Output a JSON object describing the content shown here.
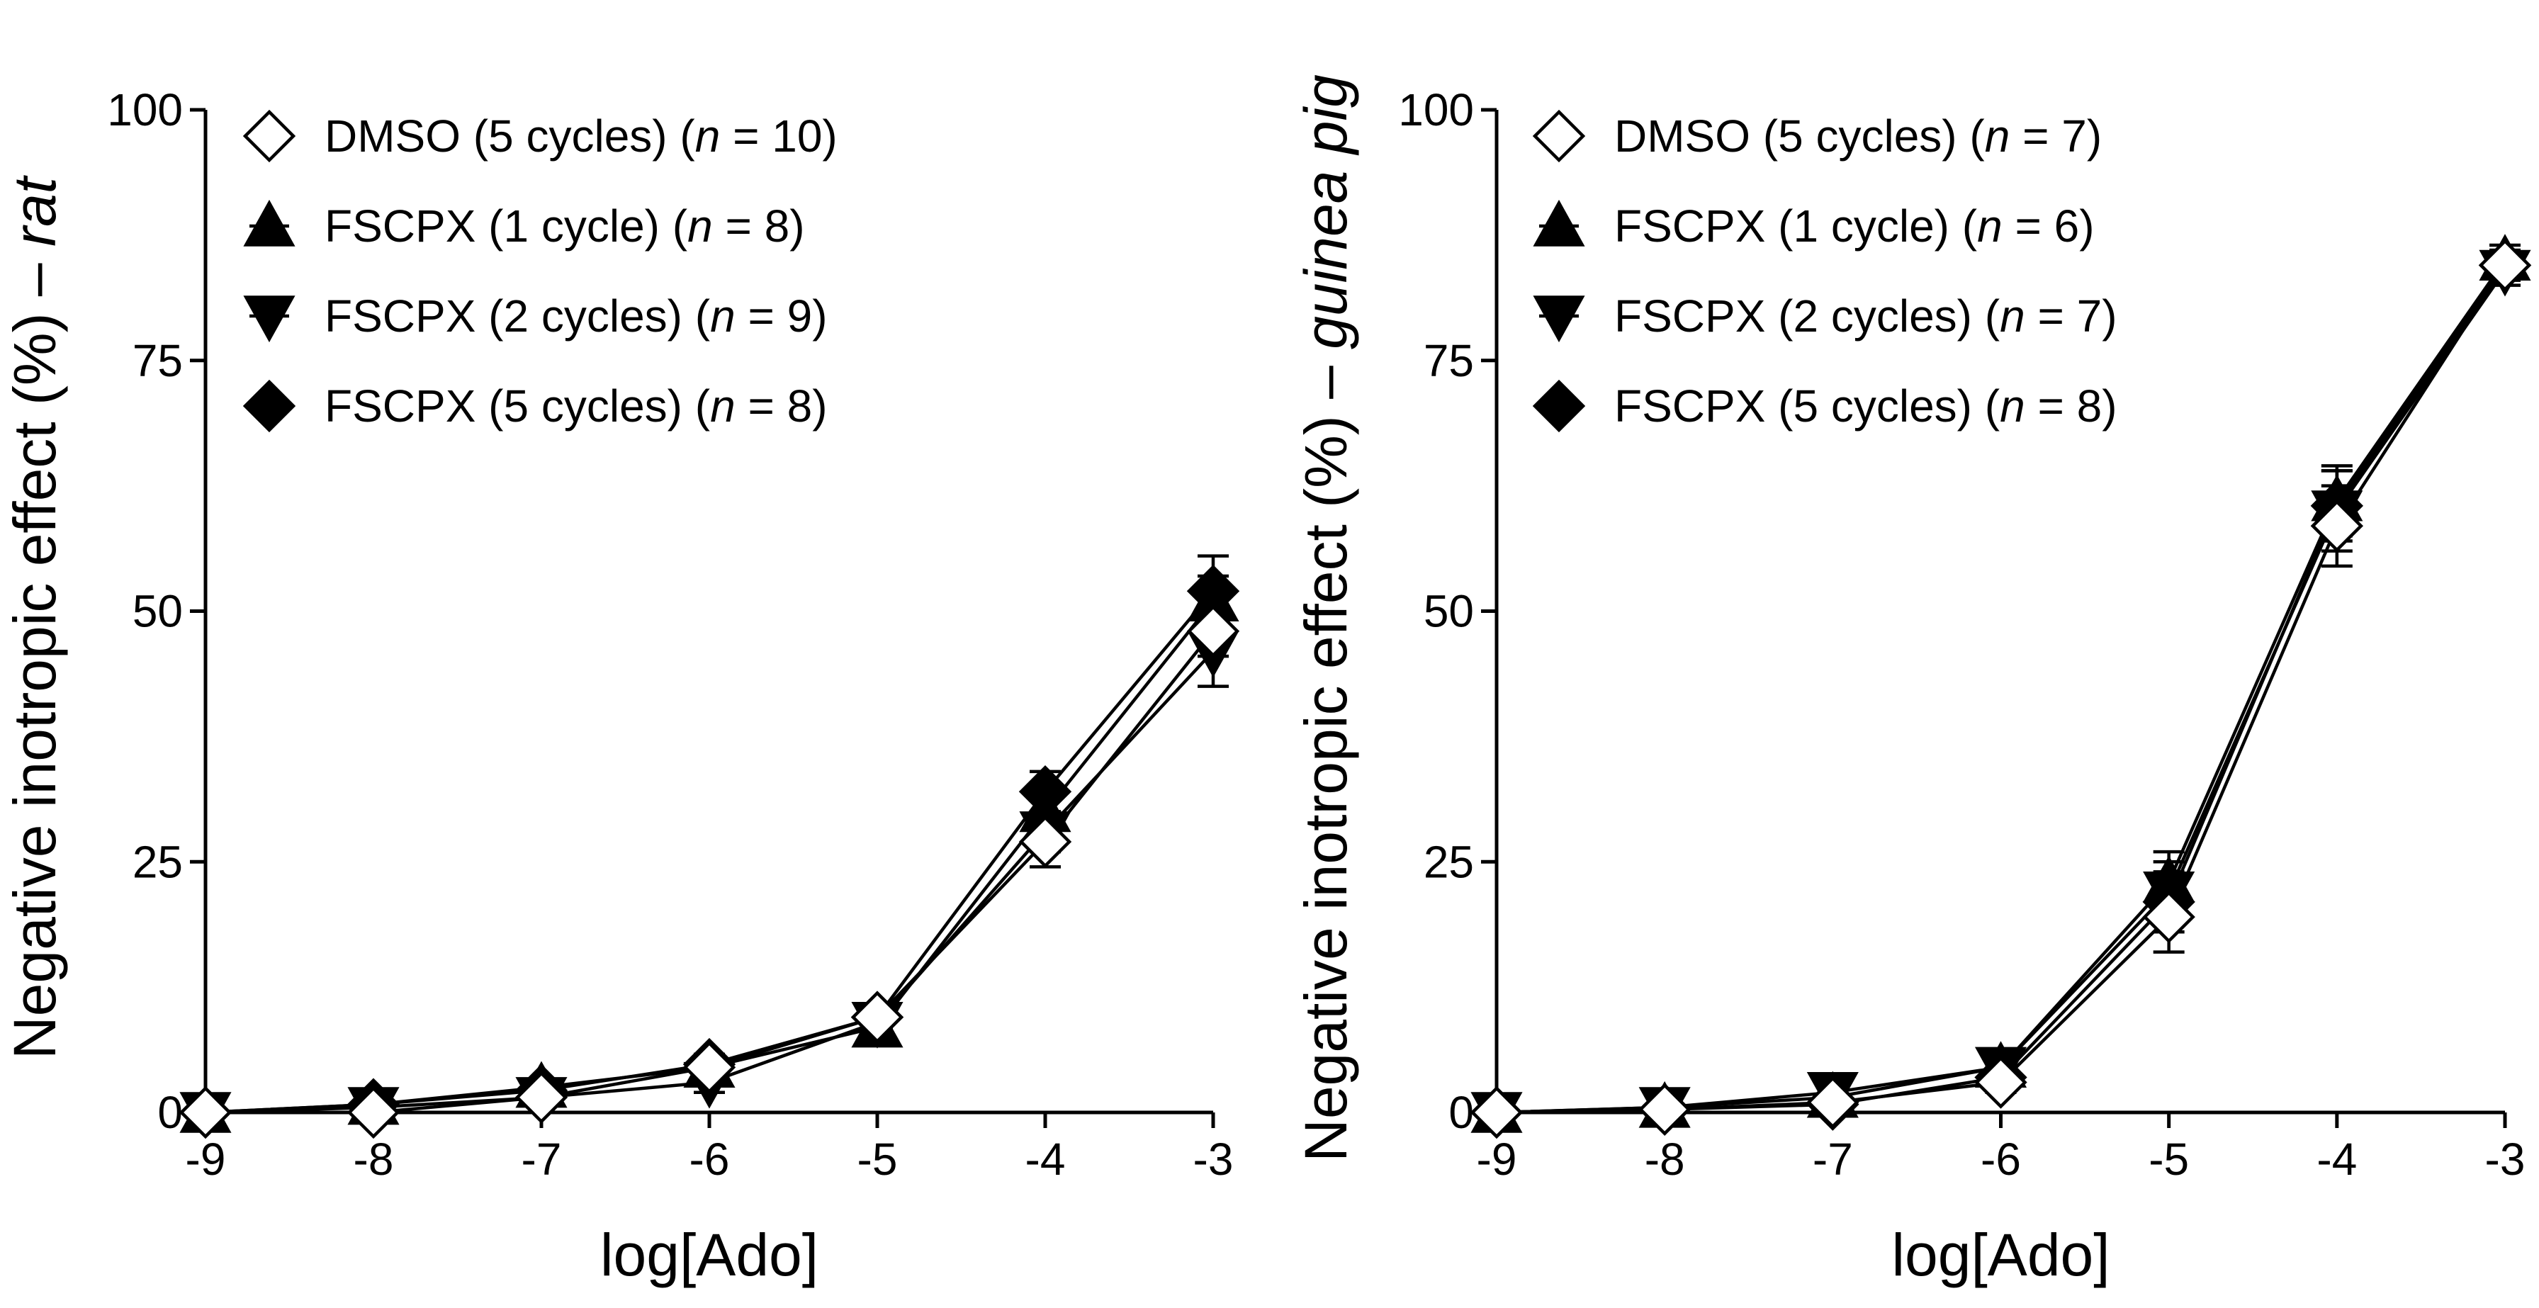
{
  "chart_data": [
    {
      "type": "line",
      "panel": "left",
      "title": "",
      "xlabel": "log[Ado]",
      "ylabel": "Negative inotropic effect (%)",
      "ylabel_suffix": "rat",
      "xlim": [
        -9,
        -3
      ],
      "ylim": [
        0,
        100
      ],
      "xticks": [
        "-9",
        "-8",
        "-7",
        "-6",
        "-5",
        "-4",
        "-3"
      ],
      "yticks": [
        "0",
        "25",
        "50",
        "75",
        "100"
      ],
      "legend_position": "top-left",
      "x": [
        -9,
        -8,
        -7,
        -6,
        -5,
        -4,
        -3
      ],
      "series": [
        {
          "name": "DMSO (5 cycles)",
          "n_label": "n",
          "n_value": "= 10)",
          "marker": "diamond-open",
          "values": [
            0,
            0,
            1.5,
            4.5,
            9.5,
            27,
            48
          ],
          "errors": [
            0.5,
            0.5,
            0.8,
            1.0,
            1.2,
            2.5,
            2.5
          ]
        },
        {
          "name": "FSCPX (1 cycle)",
          "n_label": "n",
          "n_value": "= 8)",
          "marker": "triangle-up",
          "values": [
            0,
            0.8,
            2.5,
            4.5,
            8.5,
            30,
            51
          ],
          "errors": [
            0.5,
            0.5,
            0.8,
            1.0,
            1.2,
            2.5,
            2.5
          ]
        },
        {
          "name": "FSCPX (2 cycles)",
          "n_label": "n",
          "n_value": "= 9)",
          "marker": "triangle-down",
          "values": [
            0,
            0.5,
            1.5,
            3,
            9,
            28,
            46
          ],
          "errors": [
            0.5,
            0.5,
            0.8,
            1.0,
            1.2,
            2.0,
            3.5
          ]
        },
        {
          "name": "FSCPX (5 cycles)",
          "n_label": "n",
          "n_value": "= 8)",
          "marker": "diamond-filled",
          "values": [
            0,
            0.8,
            2.2,
            4.8,
            9.5,
            32,
            52
          ],
          "errors": [
            0.5,
            0.5,
            0.8,
            1.0,
            1.2,
            2.0,
            3.5
          ]
        }
      ]
    },
    {
      "type": "line",
      "panel": "right",
      "title": "",
      "xlabel": "log[Ado]",
      "ylabel": "Negative inotropic effect (%)",
      "ylabel_suffix": "guinea pig",
      "xlim": [
        -9,
        -3
      ],
      "ylim": [
        0,
        100
      ],
      "xticks": [
        "-9",
        "-8",
        "-7",
        "-6",
        "-5",
        "-4",
        "-3"
      ],
      "yticks": [
        "0",
        "25",
        "50",
        "75",
        "100"
      ],
      "legend_position": "top-left",
      "x": [
        -9,
        -8,
        -7,
        -6,
        -5,
        -4,
        -3
      ],
      "series": [
        {
          "name": "DMSO (5 cycles)",
          "n_label": "n",
          "n_value": "= 7)",
          "marker": "diamond-open",
          "values": [
            0,
            0.3,
            1,
            3,
            19.5,
            58.5,
            84.5
          ],
          "errors": [
            0.5,
            0.5,
            0.8,
            1.0,
            3.5,
            4.0,
            1.5
          ]
        },
        {
          "name": "FSCPX (1 cycle)",
          "n_label": "n",
          "n_value": "= 6)",
          "marker": "triangle-up",
          "values": [
            0,
            0.5,
            1.5,
            4.5,
            23,
            61,
            85
          ],
          "errors": [
            0.5,
            0.5,
            0.8,
            1.0,
            3.0,
            3.5,
            1.5
          ]
        },
        {
          "name": "FSCPX (2 cycles)",
          "n_label": "n",
          "n_value": "= 7)",
          "marker": "triangle-down",
          "values": [
            0,
            0.5,
            2,
            4.5,
            22,
            60,
            84
          ],
          "errors": [
            0.5,
            0.5,
            0.8,
            1.0,
            3.0,
            4.0,
            1.5
          ]
        },
        {
          "name": "FSCPX (5 cycles)",
          "n_label": "n",
          "n_value": "= 8)",
          "marker": "diamond-filled",
          "values": [
            0,
            0.3,
            0.8,
            3.5,
            21,
            60.5,
            84.5
          ],
          "errors": [
            0.5,
            0.5,
            0.8,
            1.0,
            3.0,
            3.5,
            1.5
          ]
        }
      ]
    }
  ]
}
